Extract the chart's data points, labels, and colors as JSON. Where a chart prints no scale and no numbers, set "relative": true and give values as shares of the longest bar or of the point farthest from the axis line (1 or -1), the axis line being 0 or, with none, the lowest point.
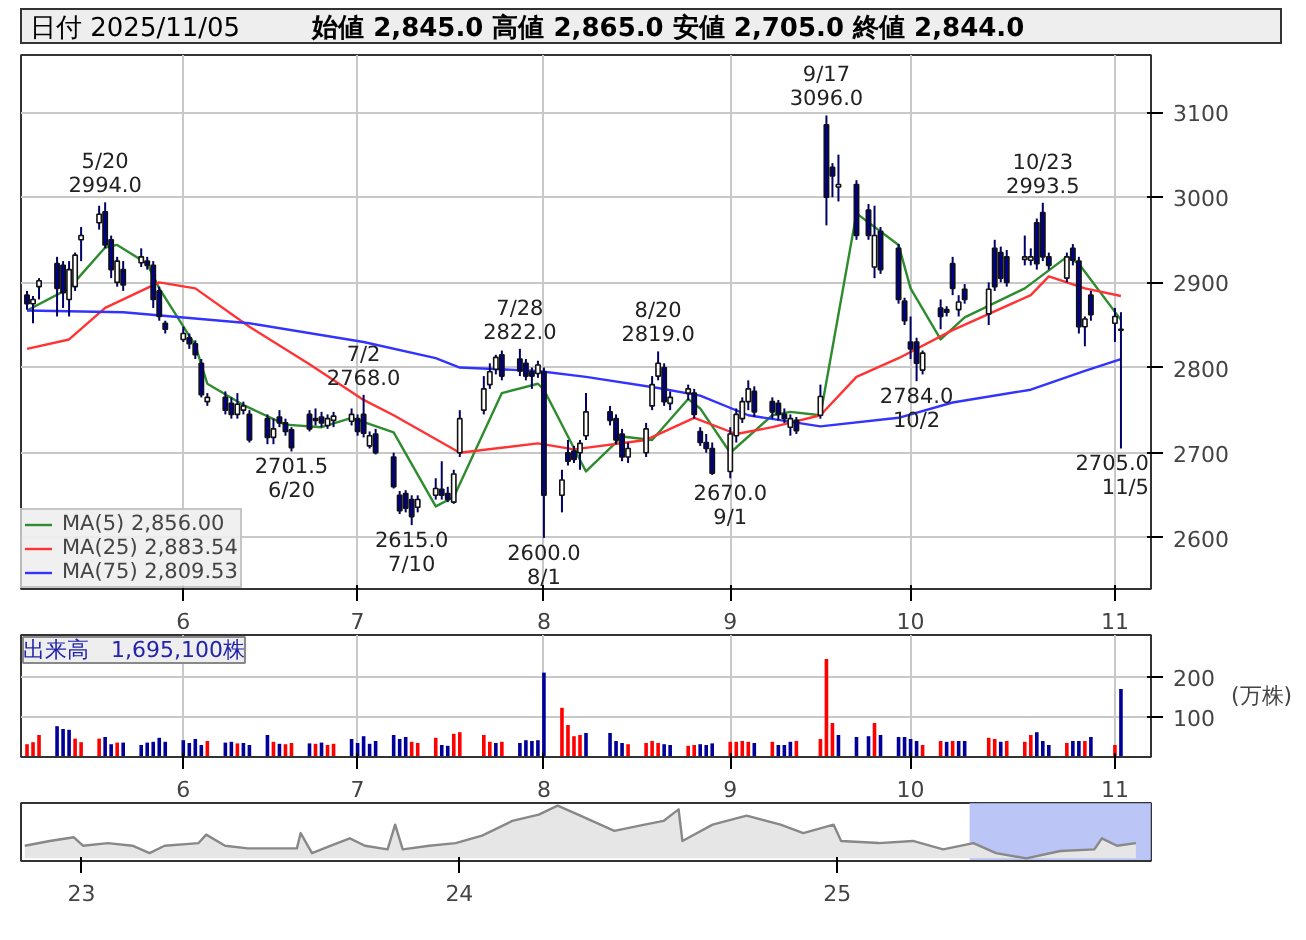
{
  "chart_data": [
    {
      "type": "candlestick",
      "title": "日付 2025/11/05",
      "subtitle": "始値 2,845.0 高値 2,865.0 安値 2,705.0 終値 2,844.0",
      "colors": [
        "#000088",
        "#ffffff",
        "#ffffff",
        "#000088",
        "#000088",
        "#ffffff",
        "#ffffff",
        "#ffffff",
        "#ffffff",
        "#000088",
        "#000088",
        "#ffffff",
        "#000088",
        "#ffffff",
        "#000088",
        "#000088",
        "#000088",
        "#000088",
        "#ffffff",
        "#000088",
        "#000088",
        "#000088",
        "#ffffff",
        "#000088",
        "#000088",
        "#ffffff",
        "#ffffff",
        "#000088",
        "#000088",
        "#ffffff",
        "#000088",
        "#000088",
        "#000088",
        "#000088",
        "#ffffff",
        "#000088",
        "#ffffff",
        "#ffffff",
        "#ffffff",
        "#000088",
        "#000088",
        "#ffffff",
        "#000088",
        "#000088",
        "#000088",
        "#000088",
        "#000088",
        "#ffffff",
        "#ffffff",
        "#000088",
        "#000088",
        "#ffffff",
        "#ffffff",
        "#ffffff",
        "#ffffff",
        "#ffffff",
        "#000088",
        "#000088",
        "#000088",
        "#000088",
        "#ffffff",
        "#000088",
        "#ffffff",
        "#000088",
        "#000088",
        "#ffffff",
        "#ffffff",
        "#000088",
        "#000088",
        "#000088",
        "#ffffff",
        "#ffffff",
        "#ffffff",
        "#ffffff",
        "#000088",
        "#ffffff",
        "#ffffff",
        "#000088",
        "#000088",
        "#000088",
        "#000088",
        "#ffffff",
        "#ffffff",
        "#ffffff",
        "#ffffff",
        "#000088",
        "#000088",
        "#000088",
        "#000088",
        "#ffffff",
        "#000088",
        "#ffffff",
        "#000088",
        "#000088",
        "#ffffff",
        "#000088",
        "#000088",
        "#ffffff",
        "#000088",
        "#000088",
        "#000088",
        "#000088",
        "#000088",
        "#ffffff",
        "#000088",
        "#000088",
        "#000088",
        "#ffffff",
        "#000088",
        "#ffffff",
        "#000088",
        "#000088",
        "#000088",
        "#ffffff",
        "#ffffff",
        "#000088",
        "#000088",
        "#000088",
        "#ffffff",
        "#000088",
        "#000088",
        "#ffffff",
        "#000088",
        "#ffffff",
        "#000088"
      ],
      "x": [
        "2025-05-07",
        "2025-05-08",
        "2025-05-09",
        "2025-05-12",
        "2025-05-13",
        "2025-05-14",
        "2025-05-15",
        "2025-05-16",
        "2025-05-19",
        "2025-05-20",
        "2025-05-21",
        "2025-05-22",
        "2025-05-23",
        "2025-05-26",
        "2025-05-27",
        "2025-05-28",
        "2025-05-29",
        "2025-05-30",
        "2025-06-02",
        "2025-06-03",
        "2025-06-04",
        "2025-06-05",
        "2025-06-06",
        "2025-06-09",
        "2025-06-10",
        "2025-06-11",
        "2025-06-12",
        "2025-06-13",
        "2025-06-16",
        "2025-06-17",
        "2025-06-18",
        "2025-06-19",
        "2025-06-20",
        "2025-06-23",
        "2025-06-24",
        "2025-06-25",
        "2025-06-26",
        "2025-06-27",
        "2025-06-30",
        "2025-07-01",
        "2025-07-02",
        "2025-07-03",
        "2025-07-04",
        "2025-07-07",
        "2025-07-08",
        "2025-07-09",
        "2025-07-10",
        "2025-07-11",
        "2025-07-14",
        "2025-07-15",
        "2025-07-16",
        "2025-07-17",
        "2025-07-18",
        "2025-07-22",
        "2025-07-23",
        "2025-07-24",
        "2025-07-25",
        "2025-07-28",
        "2025-07-29",
        "2025-07-30",
        "2025-07-31",
        "2025-08-01",
        "2025-08-04",
        "2025-08-05",
        "2025-08-06",
        "2025-08-07",
        "2025-08-08",
        "2025-08-12",
        "2025-08-13",
        "2025-08-14",
        "2025-08-15",
        "2025-08-18",
        "2025-08-19",
        "2025-08-20",
        "2025-08-21",
        "2025-08-22",
        "2025-08-25",
        "2025-08-26",
        "2025-08-27",
        "2025-08-28",
        "2025-08-29",
        "2025-09-01",
        "2025-09-02",
        "2025-09-03",
        "2025-09-04",
        "2025-09-05",
        "2025-09-08",
        "2025-09-09",
        "2025-09-10",
        "2025-09-11",
        "2025-09-12",
        "2025-09-16",
        "2025-09-17",
        "2025-09-18",
        "2025-09-19",
        "2025-09-22",
        "2025-09-24",
        "2025-09-25",
        "2025-09-26",
        "2025-09-29",
        "2025-09-30",
        "2025-10-01",
        "2025-10-02",
        "2025-10-03",
        "2025-10-06",
        "2025-10-07",
        "2025-10-08",
        "2025-10-09",
        "2025-10-10",
        "2025-10-14",
        "2025-10-15",
        "2025-10-16",
        "2025-10-17",
        "2025-10-20",
        "2025-10-21",
        "2025-10-22",
        "2025-10-23",
        "2025-10-24",
        "2025-10-27",
        "2025-10-28",
        "2025-10-29",
        "2025-10-30",
        "2025-10-31",
        "2025-11-04",
        "2025-11-05"
      ],
      "ohlc": [
        [
          2885,
          2890,
          2868,
          2875
        ],
        [
          2875,
          2884,
          2852,
          2880
        ],
        [
          2895,
          2905,
          2880,
          2902
        ],
        [
          2922,
          2930,
          2860,
          2893
        ],
        [
          2920,
          2925,
          2870,
          2888
        ],
        [
          2880,
          2925,
          2860,
          2915
        ],
        [
          2895,
          2935,
          2890,
          2932
        ],
        [
          2950,
          2965,
          2925,
          2955
        ],
        [
          2970,
          2990,
          2962,
          2980
        ],
        [
          2983,
          2994,
          2940,
          2944
        ],
        [
          2950,
          2955,
          2905,
          2915
        ],
        [
          2900,
          2930,
          2895,
          2925
        ],
        [
          2915,
          2925,
          2890,
          2897
        ],
        [
          2923,
          2940,
          2918,
          2930
        ],
        [
          2925,
          2930,
          2915,
          2920
        ],
        [
          2920,
          2925,
          2870,
          2880
        ],
        [
          2890,
          2895,
          2855,
          2860
        ],
        [
          2852,
          2855,
          2840,
          2845
        ],
        [
          2833,
          2848,
          2830,
          2840
        ],
        [
          2835,
          2840,
          2822,
          2828
        ],
        [
          2828,
          2832,
          2810,
          2815
        ],
        [
          2805,
          2810,
          2765,
          2768
        ],
        [
          2760,
          2770,
          2755,
          2765
        ],
        [
          2765,
          2772,
          2745,
          2750
        ],
        [
          2758,
          2765,
          2740,
          2745
        ],
        [
          2745,
          2770,
          2740,
          2757
        ],
        [
          2750,
          2760,
          2745,
          2755
        ],
        [
          2745,
          2750,
          2712,
          2715
        ],
        [
          2740,
          2745,
          2710,
          2718
        ],
        [
          2718,
          2740,
          2710,
          2728
        ],
        [
          2742,
          2750,
          2730,
          2735
        ],
        [
          2735,
          2740,
          2720,
          2725
        ],
        [
          2727,
          2730,
          2701.5,
          2706
        ],
        [
          2745,
          2750,
          2725,
          2728
        ],
        [
          2738,
          2752,
          2732,
          2740
        ],
        [
          2742,
          2748,
          2730,
          2735
        ],
        [
          2732,
          2745,
          2728,
          2740
        ],
        [
          2738,
          2748,
          2730,
          2743
        ],
        [
          2737,
          2752,
          2732,
          2745
        ],
        [
          2740,
          2745,
          2720,
          2725
        ],
        [
          2745,
          2768,
          2718,
          2723
        ],
        [
          2708,
          2725,
          2705,
          2720
        ],
        [
          2722,
          2728,
          2698,
          2700
        ],
        [
          2695,
          2700,
          2658,
          2660
        ],
        [
          2650,
          2655,
          2628,
          2632
        ],
        [
          2652,
          2656,
          2630,
          2635
        ],
        [
          2645,
          2650,
          2615,
          2625
        ],
        [
          2636,
          2650,
          2630,
          2645
        ],
        [
          2650,
          2670,
          2645,
          2658
        ],
        [
          2657,
          2690,
          2645,
          2650
        ],
        [
          2652,
          2660,
          2642,
          2645
        ],
        [
          2642,
          2680,
          2640,
          2675
        ],
        [
          2700,
          2750,
          2695,
          2740
        ],
        [
          2750,
          2790,
          2745,
          2775
        ],
        [
          2780,
          2805,
          2775,
          2795
        ],
        [
          2798,
          2815,
          2792,
          2812
        ],
        [
          2815,
          2820,
          2785,
          2790
        ],
        [
          2810,
          2822,
          2790,
          2796
        ],
        [
          2805,
          2810,
          2785,
          2790
        ],
        [
          2795,
          2800,
          2775,
          2790
        ],
        [
          2793,
          2808,
          2788,
          2803
        ],
        [
          2795,
          2800,
          2600,
          2650
        ],
        [
          2650,
          2680,
          2630,
          2668
        ],
        [
          2700,
          2715,
          2685,
          2690
        ],
        [
          2702,
          2708,
          2688,
          2692
        ],
        [
          2700,
          2715,
          2680,
          2711
        ],
        [
          2720,
          2770,
          2715,
          2748
        ],
        [
          2748,
          2755,
          2732,
          2738
        ],
        [
          2740,
          2745,
          2710,
          2715
        ],
        [
          2722,
          2728,
          2690,
          2695
        ],
        [
          2695,
          2712,
          2688,
          2705
        ],
        [
          2700,
          2735,
          2695,
          2728
        ],
        [
          2755,
          2790,
          2750,
          2780
        ],
        [
          2790,
          2819,
          2785,
          2805
        ],
        [
          2800,
          2805,
          2755,
          2760
        ],
        [
          2758,
          2772,
          2750,
          2765
        ],
        [
          2770,
          2780,
          2762,
          2775
        ],
        [
          2770,
          2775,
          2740,
          2745
        ],
        [
          2725,
          2730,
          2708,
          2712
        ],
        [
          2712,
          2722,
          2700,
          2705
        ],
        [
          2705,
          2712,
          2674,
          2676
        ],
        [
          2678,
          2730,
          2670,
          2722
        ],
        [
          2720,
          2752,
          2712,
          2745
        ],
        [
          2740,
          2765,
          2735,
          2760
        ],
        [
          2760,
          2785,
          2750,
          2775
        ],
        [
          2772,
          2778,
          2742,
          2748
        ],
        [
          2760,
          2765,
          2740,
          2748
        ],
        [
          2758,
          2762,
          2738,
          2745
        ],
        [
          2745,
          2752,
          2735,
          2740
        ],
        [
          2730,
          2745,
          2720,
          2740
        ],
        [
          2738,
          2742,
          2722,
          2726
        ],
        [
          2744,
          2780,
          2740,
          2766
        ],
        [
          3085,
          3096,
          2967,
          3000
        ],
        [
          3035,
          3040,
          3000,
          3025
        ],
        [
          3012,
          3050,
          2995,
          3015
        ],
        [
          3015,
          3020,
          2950,
          2955
        ],
        [
          2985,
          2992,
          2950,
          2955
        ],
        [
          2918,
          2990,
          2905,
          2955
        ],
        [
          2960,
          2965,
          2910,
          2915
        ],
        [
          2940,
          2945,
          2875,
          2880
        ],
        [
          2878,
          2882,
          2850,
          2855
        ],
        [
          2830,
          2860,
          2810,
          2822
        ],
        [
          2830,
          2835,
          2784,
          2805
        ],
        [
          2797,
          2820,
          2792,
          2817
        ],
        [
          2870,
          2880,
          2845,
          2860
        ],
        [
          2868,
          2872,
          2860,
          2865
        ],
        [
          2922,
          2930,
          2885,
          2893
        ],
        [
          2868,
          2885,
          2860,
          2877
        ],
        [
          2892,
          2898,
          2875,
          2880
        ],
        [
          2863,
          2900,
          2850,
          2892
        ],
        [
          2940,
          2950,
          2890,
          2895
        ],
        [
          2935,
          2942,
          2900,
          2905
        ],
        [
          2930,
          2938,
          2895,
          2900
        ],
        [
          2927,
          2955,
          2920,
          2930
        ],
        [
          2926,
          2940,
          2920,
          2930
        ],
        [
          2970,
          2975,
          2915,
          2922
        ],
        [
          2982,
          2993.5,
          2925,
          2930
        ],
        [
          2930,
          2935,
          2915,
          2920
        ],
        [
          2905,
          2935,
          2900,
          2930
        ],
        [
          2940,
          2945,
          2920,
          2926
        ],
        [
          2925,
          2930,
          2840,
          2848
        ],
        [
          2848,
          2860,
          2825,
          2857
        ],
        [
          2885,
          2890,
          2855,
          2862
        ],
        [
          2852,
          2870,
          2830,
          2860
        ],
        [
          2845,
          2865,
          2705,
          2844
        ]
      ],
      "series": [
        {
          "type": "line",
          "name": "MA(5) 2,856.00",
          "color": "#2e8b2e",
          "x": [
            "2025-05-07",
            "2025-05-14",
            "2025-05-20",
            "2025-05-22",
            "2025-05-27",
            "2025-05-29",
            "2025-06-04",
            "2025-06-06",
            "2025-06-12",
            "2025-06-19",
            "2025-06-25",
            "2025-06-30",
            "2025-07-07",
            "2025-07-14",
            "2025-07-17",
            "2025-07-25",
            "2025-07-31",
            "2025-08-01",
            "2025-08-08",
            "2025-08-14",
            "2025-08-19",
            "2025-08-25",
            "2025-08-27",
            "2025-09-01",
            "2025-09-08",
            "2025-09-11",
            "2025-09-16",
            "2025-09-22",
            "2025-09-29",
            "2025-10-01",
            "2025-10-06",
            "2025-10-10",
            "2025-10-20",
            "2025-10-27",
            "2025-10-29",
            "2025-11-05"
          ],
          "values": [
            2867,
            2893,
            2941,
            2944,
            2922,
            2893,
            2826,
            2781,
            2756,
            2733,
            2730,
            2741,
            2724,
            2637,
            2648,
            2770,
            2781,
            2774,
            2678,
            2719,
            2715,
            2763,
            2752,
            2700,
            2744,
            2748,
            2744,
            2981,
            2944,
            2893,
            2833,
            2859,
            2893,
            2930,
            2922,
            2856
          ]
        },
        {
          "type": "line",
          "name": "MA(25) 2,883.54",
          "color": "#ff3333",
          "x": [
            "2025-05-07",
            "2025-05-14",
            "2025-05-20",
            "2025-05-29",
            "2025-06-04",
            "2025-06-13",
            "2025-06-23",
            "2025-07-02",
            "2025-07-07",
            "2025-07-18",
            "2025-07-31",
            "2025-08-06",
            "2025-08-18",
            "2025-08-26",
            "2025-09-02",
            "2025-09-08",
            "2025-09-16",
            "2025-09-22",
            "2025-09-29",
            "2025-10-08",
            "2025-10-21",
            "2025-10-24",
            "2025-10-30",
            "2025-11-05"
          ],
          "values": [
            2822,
            2833,
            2870,
            2900,
            2893,
            2848,
            2804,
            2762,
            2744,
            2700,
            2711,
            2704,
            2715,
            2741,
            2722,
            2730,
            2744,
            2789,
            2811,
            2844,
            2885,
            2907,
            2893,
            2884
          ]
        },
        {
          "type": "line",
          "name": "MA(75) 2,809.53",
          "color": "#3333ff",
          "x": [
            "2025-05-07",
            "2025-05-23",
            "2025-06-13",
            "2025-07-02",
            "2025-07-14",
            "2025-07-18",
            "2025-07-31",
            "2025-08-08",
            "2025-08-20",
            "2025-08-27",
            "2025-09-04",
            "2025-09-16",
            "2025-09-29",
            "2025-10-08",
            "2025-10-21",
            "2025-10-30",
            "2025-11-05"
          ],
          "values": [
            2867,
            2865,
            2852,
            2830,
            2811,
            2800,
            2796,
            2789,
            2776,
            2767,
            2744,
            2731,
            2741,
            2759,
            2774,
            2796,
            2810
          ]
        }
      ],
      "xlim": [
        "2025-05-06",
        "2025-11-10"
      ],
      "xticks": [
        {
          "value": "2025-06-02",
          "label": "6"
        },
        {
          "value": "2025-07-01",
          "label": "7"
        },
        {
          "value": "2025-08-01",
          "label": "8"
        },
        {
          "value": "2025-09-01",
          "label": "9"
        },
        {
          "value": "2025-10-01",
          "label": "10"
        },
        {
          "value": "2025-11-04",
          "label": "11"
        }
      ],
      "ylim": [
        2540,
        3167
      ],
      "yticks": [
        2600,
        2700,
        2800,
        2900,
        3000,
        3100
      ],
      "grid": true,
      "legend": "bottom left",
      "annotations": [
        {
          "text": "5/20\n2994.0",
          "x": "2025-05-20",
          "y": 2994.0
        },
        {
          "text": "2701.5\n6/20",
          "x": "2025-06-20",
          "y": 2701.5
        },
        {
          "text": "7/2\n2768.0",
          "x": "2025-07-02",
          "y": 2768.0
        },
        {
          "text": "2615.0\n7/10",
          "x": "2025-07-10",
          "y": 2615.0
        },
        {
          "text": "7/28\n2822.0",
          "x": "2025-07-28",
          "y": 2822.0
        },
        {
          "text": "2600.0\n8/1",
          "x": "2025-08-01",
          "y": 2600.0
        },
        {
          "text": "8/20\n2819.0",
          "x": "2025-08-20",
          "y": 2819.0
        },
        {
          "text": "2670.0\n9/1",
          "x": "2025-09-01",
          "y": 2670.0
        },
        {
          "text": "9/17\n3096.0",
          "x": "2025-09-17",
          "y": 3096.0
        },
        {
          "text": "2784.0\n10/2",
          "x": "2025-10-02",
          "y": 2784.0
        },
        {
          "text": "10/23\n2993.5",
          "x": "2025-10-23",
          "y": 2993.5
        },
        {
          "text": "2705.0\n11/5",
          "x": "2025-11-05",
          "y": 2705.0
        }
      ]
    },
    {
      "type": "bar",
      "title": "出来高　1,695,100株",
      "ylabel": "(万株)",
      "x": [
        "2025-05-07",
        "2025-05-08",
        "2025-05-09",
        "2025-05-12",
        "2025-05-13",
        "2025-05-14",
        "2025-05-15",
        "2025-05-16",
        "2025-05-19",
        "2025-05-20",
        "2025-05-21",
        "2025-05-22",
        "2025-05-23",
        "2025-05-26",
        "2025-05-27",
        "2025-05-28",
        "2025-05-29",
        "2025-05-30",
        "2025-06-02",
        "2025-06-03",
        "2025-06-04",
        "2025-06-05",
        "2025-06-06",
        "2025-06-09",
        "2025-06-10",
        "2025-06-11",
        "2025-06-12",
        "2025-06-13",
        "2025-06-16",
        "2025-06-17",
        "2025-06-18",
        "2025-06-19",
        "2025-06-20",
        "2025-06-23",
        "2025-06-24",
        "2025-06-25",
        "2025-06-26",
        "2025-06-27",
        "2025-06-30",
        "2025-07-01",
        "2025-07-02",
        "2025-07-03",
        "2025-07-04",
        "2025-07-07",
        "2025-07-08",
        "2025-07-09",
        "2025-07-10",
        "2025-07-11",
        "2025-07-14",
        "2025-07-15",
        "2025-07-16",
        "2025-07-17",
        "2025-07-18",
        "2025-07-22",
        "2025-07-23",
        "2025-07-24",
        "2025-07-25",
        "2025-07-28",
        "2025-07-29",
        "2025-07-30",
        "2025-07-31",
        "2025-08-01",
        "2025-08-04",
        "2025-08-05",
        "2025-08-06",
        "2025-08-07",
        "2025-08-08",
        "2025-08-12",
        "2025-08-13",
        "2025-08-14",
        "2025-08-15",
        "2025-08-18",
        "2025-08-19",
        "2025-08-20",
        "2025-08-21",
        "2025-08-22",
        "2025-08-25",
        "2025-08-26",
        "2025-08-27",
        "2025-08-28",
        "2025-08-29",
        "2025-09-01",
        "2025-09-02",
        "2025-09-03",
        "2025-09-04",
        "2025-09-05",
        "2025-09-08",
        "2025-09-09",
        "2025-09-10",
        "2025-09-11",
        "2025-09-12",
        "2025-09-16",
        "2025-09-17",
        "2025-09-18",
        "2025-09-19",
        "2025-09-22",
        "2025-09-24",
        "2025-09-25",
        "2025-09-26",
        "2025-09-29",
        "2025-09-30",
        "2025-10-01",
        "2025-10-02",
        "2025-10-03",
        "2025-10-06",
        "2025-10-07",
        "2025-10-08",
        "2025-10-09",
        "2025-10-10",
        "2025-10-14",
        "2025-10-15",
        "2025-10-16",
        "2025-10-17",
        "2025-10-20",
        "2025-10-21",
        "2025-10-22",
        "2025-10-23",
        "2025-10-24",
        "2025-10-27",
        "2025-10-28",
        "2025-10-29",
        "2025-10-30",
        "2025-10-31",
        "2025-11-04",
        "2025-11-05"
      ],
      "values": [
        32,
        37,
        55,
        77,
        70,
        68,
        46,
        37,
        46,
        50,
        32,
        36,
        36,
        30,
        36,
        38,
        48,
        38,
        42,
        35,
        45,
        30,
        40,
        36,
        38,
        34,
        35,
        30,
        55,
        38,
        33,
        32,
        35,
        34,
        33,
        36,
        30,
        33,
        45,
        35,
        52,
        33,
        40,
        55,
        45,
        50,
        38,
        35,
        48,
        30,
        28,
        58,
        62,
        55,
        38,
        35,
        38,
        35,
        42,
        40,
        42,
        211,
        123,
        80,
        52,
        55,
        60,
        60,
        40,
        35,
        32,
        35,
        40,
        35,
        32,
        30,
        28,
        30,
        32,
        30,
        34,
        38,
        38,
        40,
        38,
        35,
        38,
        30,
        30,
        38,
        40,
        45,
        245,
        85,
        55,
        50,
        52,
        85,
        55,
        50,
        50,
        45,
        40,
        30,
        40,
        38,
        40,
        40,
        40,
        48,
        45,
        38,
        40,
        38,
        55,
        62,
        40,
        30,
        35,
        40,
        40,
        40,
        50,
        30,
        170
      ],
      "colors": [
        "#ff0000",
        "#ff0000",
        "#ff0000",
        "#000099",
        "#000099",
        "#000099",
        "#ff0000",
        "#ff0000",
        "#ff0000",
        "#000099",
        "#000099",
        "#ff0000",
        "#000099",
        "#000099",
        "#000099",
        "#000099",
        "#000099",
        "#000099",
        "#000099",
        "#000099",
        "#000099",
        "#000099",
        "#ff0000",
        "#000099",
        "#000099",
        "#ff0000",
        "#000099",
        "#000099",
        "#000099",
        "#ff0000",
        "#000099",
        "#ff0000",
        "#ff0000",
        "#000099",
        "#ff0000",
        "#000099",
        "#ff0000",
        "#ff0000",
        "#000099",
        "#000099",
        "#000099",
        "#000099",
        "#000099",
        "#000099",
        "#000099",
        "#000099",
        "#ff0000",
        "#ff0000",
        "#ff0000",
        "#000099",
        "#000099",
        "#ff0000",
        "#ff0000",
        "#ff0000",
        "#ff0000",
        "#000099",
        "#ff0000",
        "#000099",
        "#000099",
        "#000099",
        "#000099",
        "#000099",
        "#ff0000",
        "#ff0000",
        "#ff0000",
        "#ff0000",
        "#000099",
        "#000099",
        "#000099",
        "#000099",
        "#ff0000",
        "#ff0000",
        "#ff0000",
        "#ff0000",
        "#000099",
        "#000099",
        "#ff0000",
        "#ff0000",
        "#000099",
        "#000099",
        "#000099",
        "#ff0000",
        "#ff0000",
        "#ff0000",
        "#ff0000",
        "#000099",
        "#ff0000",
        "#000099",
        "#000099",
        "#000099",
        "#ff0000",
        "#ff0000",
        "#ff0000",
        "#ff0000",
        "#000099",
        "#000099",
        "#000099",
        "#ff0000",
        "#000099",
        "#000099",
        "#000099",
        "#000099",
        "#000099",
        "#ff0000",
        "#ff0000",
        "#000099",
        "#ff0000",
        "#000099",
        "#000099",
        "#ff0000",
        "#ff0000",
        "#000099",
        "#ff0000",
        "#ff0000",
        "#ff0000",
        "#000099",
        "#000099",
        "#000099",
        "#ff0000",
        "#000099",
        "#000099",
        "#ff0000",
        "#000099",
        "#ff0000",
        "#000099"
      ],
      "xlim": [
        "2025-05-06",
        "2025-11-10"
      ],
      "xticks": [
        {
          "value": "2025-06-02",
          "label": "6"
        },
        {
          "value": "2025-07-01",
          "label": "7"
        },
        {
          "value": "2025-08-01",
          "label": "8"
        },
        {
          "value": "2025-09-01",
          "label": "9"
        },
        {
          "value": "2025-10-01",
          "label": "10"
        },
        {
          "value": "2025-11-04",
          "label": "11"
        }
      ],
      "ylim": [
        0,
        305
      ],
      "yticks": [
        100,
        200
      ],
      "grid": true
    },
    {
      "type": "area",
      "relative": true,
      "x": [
        2022.85,
        2022.916,
        2022.98,
        2023.004,
        2023.07,
        2023.135,
        2023.18,
        2023.22,
        2023.31,
        2023.33,
        2023.38,
        2023.44,
        2023.57,
        2023.58,
        2023.61,
        2023.66,
        2023.71,
        2023.75,
        2023.81,
        2023.83,
        2023.85,
        2023.92,
        2023.99,
        2024.06,
        2024.14,
        2024.21,
        2024.26,
        2024.32,
        2024.41,
        2024.49,
        2024.54,
        2024.58,
        2024.59,
        2024.67,
        2024.76,
        2024.85,
        2024.91,
        2024.99,
        2025.01,
        2025.11,
        2025.2,
        2025.28,
        2025.36,
        2025.42,
        2025.5,
        2025.59,
        2025.68,
        2025.7,
        2025.74,
        2025.79
      ],
      "series": [
        {
          "color": "#888888",
          "values": [
            0.24,
            0.33,
            0.4,
            0.24,
            0.29,
            0.24,
            0.1,
            0.24,
            0.29,
            0.45,
            0.24,
            0.19,
            0.19,
            0.48,
            0.1,
            0.24,
            0.38,
            0.24,
            0.17,
            0.64,
            0.17,
            0.24,
            0.29,
            0.43,
            0.71,
            0.83,
            1,
            0.81,
            0.52,
            0.64,
            0.71,
            0.93,
            0.33,
            0.64,
            0.81,
            0.64,
            0.48,
            0.64,
            0.33,
            0.29,
            0.33,
            0.17,
            0.29,
            0.1,
            0,
            0.14,
            0.17,
            0.38,
            0.24,
            0.29
          ]
        }
      ],
      "xlim": [
        2022.84,
        2025.83
      ],
      "xticks": [
        {
          "value": 2023,
          "label": "23"
        },
        {
          "value": 2024,
          "label": "24"
        },
        {
          "value": 2025,
          "label": "25"
        }
      ],
      "bands": [
        {
          "axis": "x",
          "from": 2025.35,
          "to": 2025.83,
          "color": "#aab8f5"
        }
      ]
    }
  ]
}
